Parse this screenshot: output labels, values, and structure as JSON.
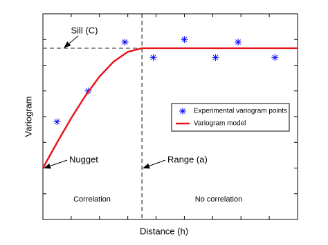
{
  "chart_data": {
    "type": "scatter-line",
    "xlabel": "Distance (h)",
    "ylabel": "Variogram",
    "xlim": [
      0,
      9
    ],
    "ylim": [
      0,
      8
    ],
    "xticks": [
      1,
      2,
      3,
      4,
      5,
      6,
      7,
      8
    ],
    "yticks": [
      1,
      2,
      3,
      4,
      5,
      6,
      7
    ],
    "sill": 6.66,
    "range": 3.5,
    "nugget": 2,
    "legend": "center right",
    "series": [
      {
        "name": "Experimental variogram points",
        "color": "#0000ff",
        "kind": "scatter",
        "x": [
          0.5,
          1.6,
          2.9,
          3.9,
          5.0,
          6.1,
          6.9,
          8.2
        ],
        "values": [
          3.8,
          5.0,
          6.9,
          6.3,
          7.0,
          6.3,
          6.9,
          6.3
        ]
      },
      {
        "name": "Variogram model",
        "color": "#e8141b",
        "kind": "line",
        "x": [
          0,
          0.5,
          1,
          1.5,
          2,
          2.5,
          3,
          3.5,
          9
        ],
        "values": [
          2,
          2.99,
          3.94,
          4.81,
          5.56,
          6.14,
          6.52,
          6.66,
          6.66
        ]
      }
    ],
    "annotations": [
      "Sill (C)",
      "Nugget",
      "Range (a)",
      "Correlation",
      "No correlation"
    ]
  }
}
